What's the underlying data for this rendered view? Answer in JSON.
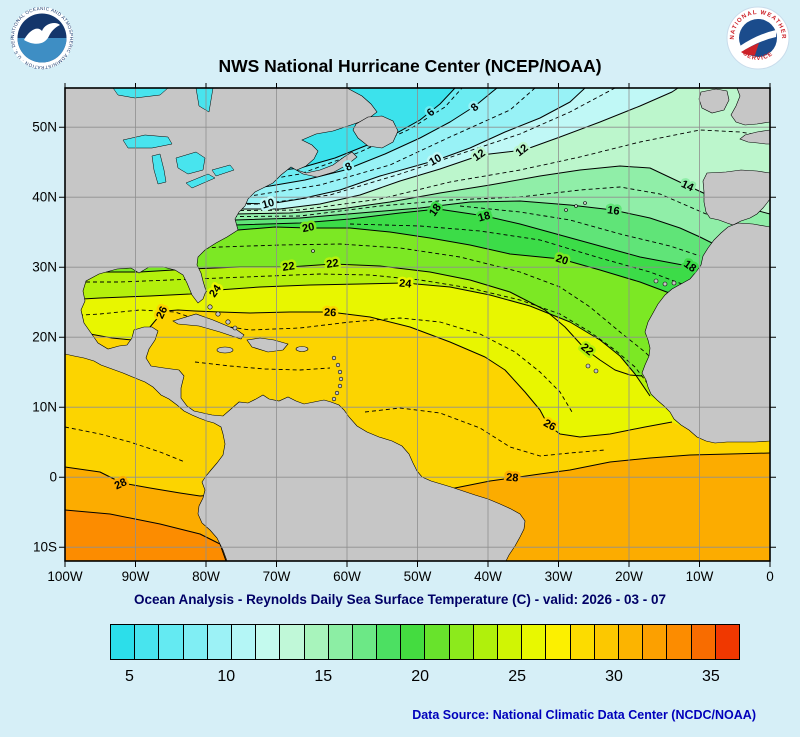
{
  "page": {
    "background_color": "#D6EFF7"
  },
  "header": {
    "title": "NWS National Hurricane Center (NCEP/NOAA)",
    "noaa_logo_alt": "NOAA",
    "noaa_ring_text": "NATIONAL OCEANIC AND ATMOSPHERIC ADMINISTRATION · U.S. DEPARTMENT OF COMMERCE",
    "nws_logo_alt": "National Weather Service",
    "nws_arc_top": "NATIONAL WEATHER",
    "nws_arc_bottom": "SERVICE"
  },
  "map": {
    "land_color": "#C6C6C6",
    "lake_color": "#48E4EE",
    "y_axis_labels": [
      "50N",
      "40N",
      "30N",
      "20N",
      "10N",
      "0",
      "10S"
    ],
    "x_axis_labels": [
      "100W",
      "90W",
      "80W",
      "70W",
      "60W",
      "50W",
      "40W",
      "30W",
      "20W",
      "10W",
      "0"
    ],
    "contour_labels": [
      "6",
      "8",
      "8",
      "10",
      "10",
      "12",
      "12",
      "14",
      "16",
      "18",
      "18",
      "18",
      "20",
      "20",
      "22",
      "22",
      "22",
      "24",
      "24",
      "26",
      "26",
      "26",
      "28",
      "28"
    ]
  },
  "caption": "Ocean Analysis - Reynolds Daily Sea Surface Temperature (C) - valid: 2026 - 03 - 07",
  "colorbar": {
    "tick_labels": [
      "5",
      "10",
      "15",
      "20",
      "25",
      "30",
      "35"
    ],
    "colors": [
      "#2CDEEA",
      "#48E4EE",
      "#64EAF2",
      "#80EEF4",
      "#9CF2F6",
      "#B4F6F6",
      "#C4FAEE",
      "#C0F8D8",
      "#A8F4BC",
      "#8CEEA4",
      "#6CE886",
      "#4CE062",
      "#44DC40",
      "#68E32C",
      "#8CEA1C",
      "#B0F00C",
      "#D0F504",
      "#E8F800",
      "#FCF000",
      "#FCDC00",
      "#FCC800",
      "#FCB400",
      "#FCA000",
      "#FC8C00",
      "#F86C00",
      "#F03800"
    ]
  },
  "footer": {
    "data_source": "Data Source: National Climatic Data Center (NCDC/NOAA)"
  },
  "chart_data": {
    "type": "heatmap",
    "title": "NWS National Hurricane Center (NCEP/NOAA)",
    "subtitle": "Ocean Analysis - Reynolds Daily Sea Surface Temperature (C) - valid: 2026 - 03 - 07",
    "variable": "Sea Surface Temperature (C)",
    "lon_tick_labels": [
      "100W",
      "90W",
      "80W",
      "70W",
      "60W",
      "50W",
      "40W",
      "30W",
      "20W",
      "10W",
      "0"
    ],
    "lat_tick_labels": [
      "50N",
      "40N",
      "30N",
      "20N",
      "10N",
      "0",
      "10S"
    ],
    "labeled_contour_levels_c": [
      6,
      8,
      10,
      12,
      14,
      16,
      18,
      20,
      22,
      24,
      26,
      28
    ],
    "colorbar_tick_values_c": [
      5,
      10,
      15,
      20,
      25,
      30,
      35
    ],
    "legend_position": "bottom"
  }
}
